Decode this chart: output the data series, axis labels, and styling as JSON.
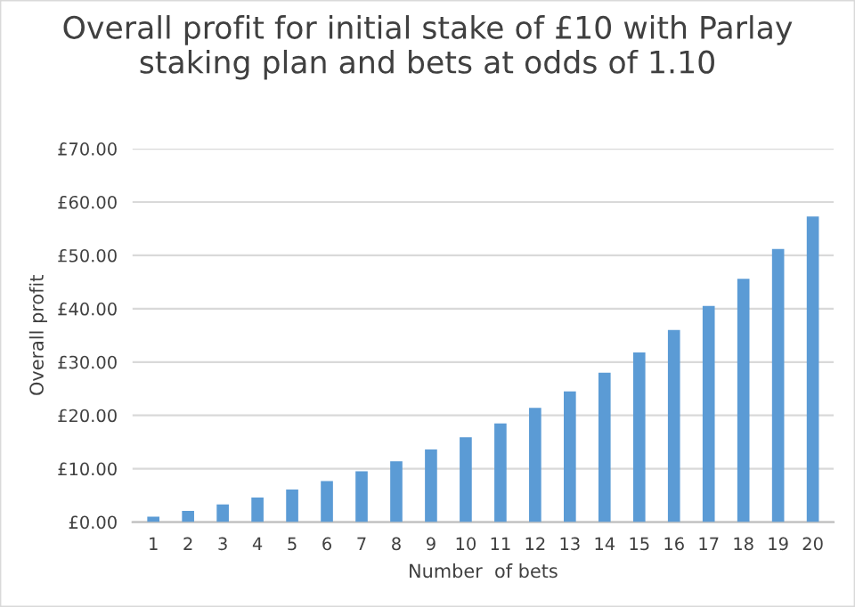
{
  "chart_data": {
    "type": "bar",
    "title": "Overall profit for initial stake of £10 with Parlay staking plan and bets at odds of 1.10",
    "xlabel": "Number  of bets",
    "ylabel": "Overall profit",
    "categories": [
      "1",
      "2",
      "3",
      "4",
      "5",
      "6",
      "7",
      "8",
      "9",
      "10",
      "11",
      "12",
      "13",
      "14",
      "15",
      "16",
      "17",
      "18",
      "19",
      "20"
    ],
    "series": [
      {
        "color": "#5b9bd5",
        "values": [
          1.0,
          2.1,
          3.3,
          4.6,
          6.1,
          7.7,
          9.5,
          11.4,
          13.6,
          15.9,
          18.5,
          21.4,
          24.5,
          28.0,
          31.8,
          36.0,
          40.5,
          45.6,
          51.2,
          57.3
        ]
      }
    ],
    "ylim": [
      0,
      70
    ],
    "yticks": [
      {
        "value": 0,
        "label": "£0.00"
      },
      {
        "value": 10,
        "label": "£10.00"
      },
      {
        "value": 20,
        "label": "£20.00"
      },
      {
        "value": 30,
        "label": "£30.00"
      },
      {
        "value": 40,
        "label": "£40.00"
      },
      {
        "value": 50,
        "label": "£50.00"
      },
      {
        "value": 60,
        "label": "£60.00"
      },
      {
        "value": 70,
        "label": "£70.00"
      }
    ],
    "grid": "y",
    "legend": false
  }
}
